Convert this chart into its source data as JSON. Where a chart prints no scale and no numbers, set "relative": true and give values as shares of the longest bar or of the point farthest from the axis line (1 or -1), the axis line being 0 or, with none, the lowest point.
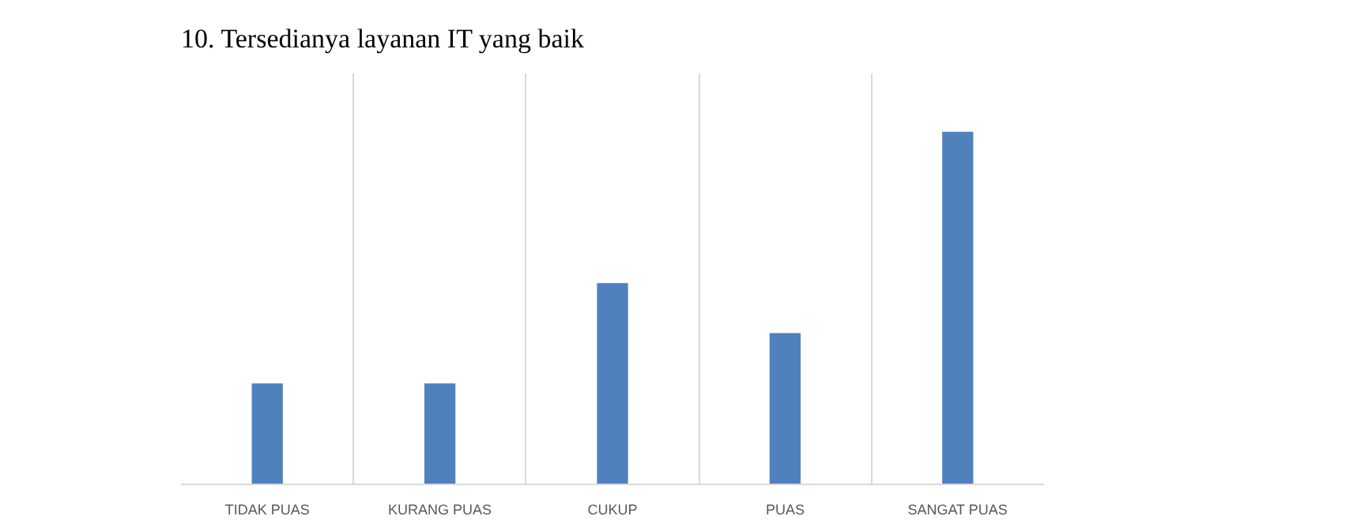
{
  "chart_data": {
    "type": "bar",
    "title": "10. Tersedianya layanan IT yang baik",
    "categories": [
      "TIDAK PUAS",
      "KURANG PUAS",
      "CUKUP",
      "PUAS",
      "SANGAT PUAS"
    ],
    "values": [
      0.286,
      0.286,
      0.571,
      0.429,
      1
    ],
    "relative": true,
    "color": "#4f81bd",
    "grid": "x"
  }
}
